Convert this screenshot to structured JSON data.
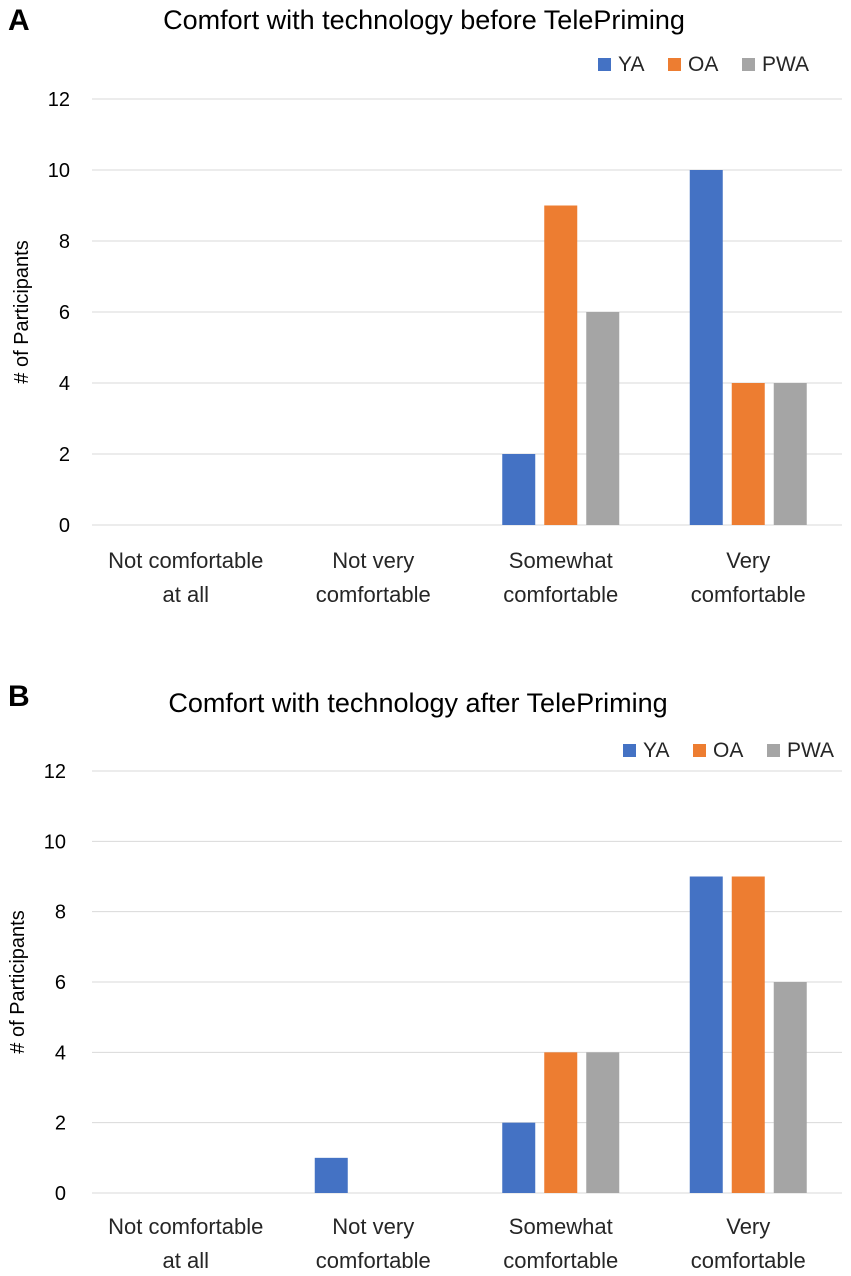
{
  "colors": {
    "YA": "#4472c4",
    "OA": "#ed7d31",
    "PWA": "#a5a5a5"
  },
  "chart_data": [
    {
      "panel": "A",
      "type": "bar",
      "title": "Comfort with technology before TelePriming",
      "ylabel": "# of Participants",
      "xlabel": "",
      "ylim": [
        0,
        12
      ],
      "yticks": [
        0,
        2,
        4,
        6,
        8,
        10,
        12
      ],
      "categories": [
        [
          "Not comfortable",
          "at all"
        ],
        [
          "Not very",
          "comfortable"
        ],
        [
          "Somewhat",
          "comfortable"
        ],
        [
          "Very",
          "comfortable"
        ]
      ],
      "legend": "top-right",
      "grid": true,
      "series": [
        {
          "name": "YA",
          "values": [
            0,
            0,
            2,
            10
          ]
        },
        {
          "name": "OA",
          "values": [
            0,
            0,
            9,
            4
          ]
        },
        {
          "name": "PWA",
          "values": [
            0,
            0,
            6,
            4
          ]
        }
      ]
    },
    {
      "panel": "B",
      "type": "bar",
      "title": "Comfort with technology after TelePriming",
      "ylabel": "# of Participants",
      "xlabel": "",
      "ylim": [
        0,
        12
      ],
      "yticks": [
        0,
        2,
        4,
        6,
        8,
        10,
        12
      ],
      "categories": [
        [
          "Not comfortable",
          "at all"
        ],
        [
          "Not very",
          "comfortable"
        ],
        [
          "Somewhat",
          "comfortable"
        ],
        [
          "Very",
          "comfortable"
        ]
      ],
      "legend": "top-right",
      "grid": true,
      "series": [
        {
          "name": "YA",
          "values": [
            0,
            1,
            2,
            9
          ]
        },
        {
          "name": "OA",
          "values": [
            0,
            0,
            4,
            9
          ]
        },
        {
          "name": "PWA",
          "values": [
            0,
            0,
            4,
            6
          ]
        }
      ]
    }
  ]
}
